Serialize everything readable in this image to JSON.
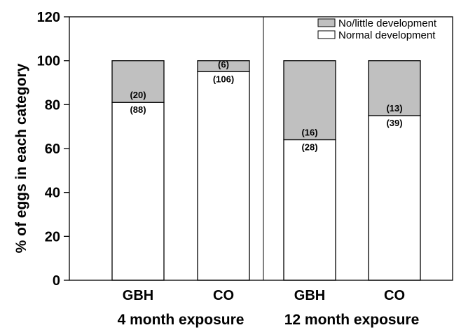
{
  "chart_data": {
    "type": "bar",
    "stacked": true,
    "ylabel": "% of eggs in each category",
    "ylim": [
      0,
      120
    ],
    "yticks": [
      0,
      20,
      40,
      60,
      80,
      100,
      120
    ],
    "groups": [
      {
        "label": "4 month exposure",
        "categories": [
          "GBH",
          "CO"
        ]
      },
      {
        "label": "12 month exposure",
        "categories": [
          "GBH",
          "CO"
        ]
      }
    ],
    "categories": [
      "GBH",
      "CO",
      "GBH",
      "CO"
    ],
    "series": [
      {
        "name": "Normal development",
        "color": "#ffffff",
        "values": [
          81,
          95,
          64,
          75
        ],
        "counts": [
          "(88)",
          "(106)",
          "(28)",
          "(39)"
        ]
      },
      {
        "name": "No/little development",
        "color": "#c0c0c0",
        "values": [
          19,
          5,
          36,
          25
        ],
        "counts": [
          "(20)",
          "(6)",
          "(16)",
          "(13)"
        ]
      }
    ],
    "legend": {
      "placement": "top-right",
      "entries": [
        "No/little development",
        "Normal development"
      ]
    },
    "grid": false
  }
}
